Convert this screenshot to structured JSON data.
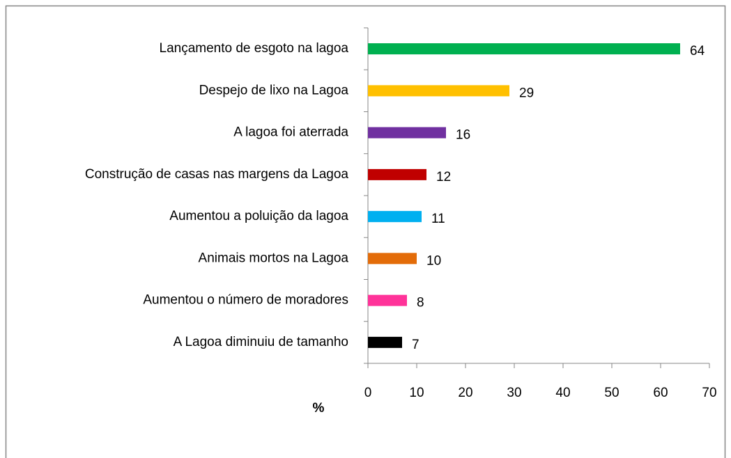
{
  "chart_data": {
    "type": "bar",
    "categories": [
      "Lançamento de esgoto na lagoa",
      "Despejo de lixo na Lagoa",
      "A lagoa foi aterrada",
      "Construção de casas nas margens da Lagoa",
      "Aumentou a poluição da lagoa",
      "Animais mortos na Lagoa",
      "Aumentou o número de moradores",
      "A Lagoa diminuiu de tamanho"
    ],
    "values": [
      64,
      29,
      16,
      12,
      11,
      10,
      8,
      7
    ],
    "colors": [
      "#00b050",
      "#ffc000",
      "#7030a0",
      "#c00000",
      "#00b0f0",
      "#e36c09",
      "#ff3399",
      "#000000"
    ],
    "xlabel": "%",
    "xlim": [
      0,
      70
    ],
    "xticks": [
      0,
      10,
      20,
      30,
      40,
      50,
      60,
      70
    ]
  }
}
